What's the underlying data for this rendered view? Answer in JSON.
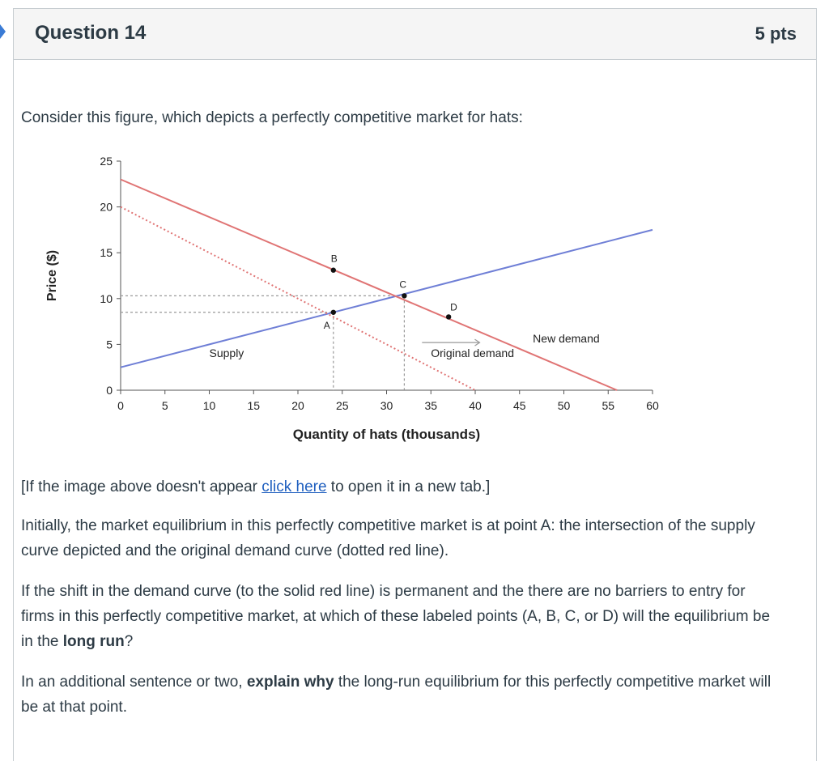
{
  "question": {
    "title": "Question 14",
    "points": "5 pts",
    "intro": "Consider this figure, which depicts a perfectly competitive market for hats:",
    "fallback_prefix": "[If the image above doesn't appear ",
    "fallback_link": "click here",
    "fallback_suffix": " to open it in a new tab.]",
    "para1": "Initially, the market equilibrium in this perfectly competitive market is at point A: the intersection of the supply curve depicted and the original demand curve (dotted red line).",
    "para2_a": "If the shift in the demand curve (to the solid red line) is permanent and the there are no barriers to entry for firms in this perfectly competitive market, at which of these labeled points (A, B, C, or D) will the equilibrium be in the ",
    "para2_bold": "long run",
    "para2_b": "?",
    "para3_a": "In an additional sentence or two, ",
    "para3_bold": "explain why",
    "para3_b": " the long-run equilibrium for this perfectly competitive market will be at that point."
  },
  "chart_data": {
    "type": "line",
    "xlabel": "Quantity of hats (thousands)",
    "ylabel": "Price ($)",
    "xlim": [
      0,
      60
    ],
    "ylim": [
      0,
      25
    ],
    "x_ticks": [
      "0",
      "5",
      "10",
      "15",
      "20",
      "25",
      "30",
      "35",
      "40",
      "45",
      "50",
      "55",
      "60"
    ],
    "y_ticks": [
      "0",
      "5",
      "10",
      "15",
      "20",
      "25"
    ],
    "series": [
      {
        "name": "Supply",
        "x": [
          0,
          60
        ],
        "y": [
          2.5,
          17.5
        ],
        "style": "solid",
        "color": "#6f7fd6"
      },
      {
        "name": "Original demand",
        "x": [
          0,
          40
        ],
        "y": [
          20,
          0
        ],
        "style": "dotted",
        "color": "#e07474"
      },
      {
        "name": "New demand",
        "x": [
          0,
          56
        ],
        "y": [
          23,
          0
        ],
        "style": "solid",
        "color": "#e07474"
      }
    ],
    "points": [
      {
        "label": "A",
        "x": 24,
        "y": 8.5
      },
      {
        "label": "B",
        "x": 24,
        "y": 13.1
      },
      {
        "label": "C",
        "x": 32,
        "y": 10.3
      },
      {
        "label": "D",
        "x": 37,
        "y": 8.0
      }
    ],
    "annotations": [
      "Supply",
      "Original demand",
      "New demand"
    ]
  }
}
